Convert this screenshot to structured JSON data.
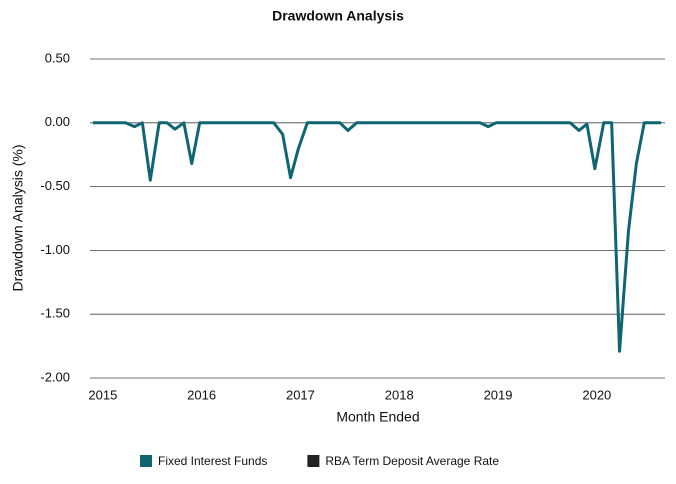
{
  "chart_data": {
    "type": "line",
    "title": "Drawdown Analysis",
    "x_label": "Month Ended",
    "y_label": "Drawdown Analysis (%)",
    "x": [
      2014.9,
      2014.98,
      2015.07,
      2015.15,
      2015.23,
      2015.32,
      2015.4,
      2015.48,
      2015.57,
      2015.65,
      2015.73,
      2015.82,
      2015.9,
      2015.98,
      2016.07,
      2016.15,
      2016.23,
      2016.32,
      2016.4,
      2016.48,
      2016.57,
      2016.65,
      2016.73,
      2016.82,
      2016.9,
      2016.98,
      2017.07,
      2017.15,
      2017.23,
      2017.32,
      2017.4,
      2017.48,
      2017.57,
      2017.65,
      2017.73,
      2017.82,
      2017.9,
      2017.98,
      2018.07,
      2018.15,
      2018.23,
      2018.32,
      2018.4,
      2018.48,
      2018.57,
      2018.65,
      2018.73,
      2018.82,
      2018.9,
      2018.98,
      2019.07,
      2019.15,
      2019.23,
      2019.32,
      2019.4,
      2019.48,
      2019.57,
      2019.65,
      2019.73,
      2019.82,
      2019.9,
      2019.98,
      2020.07,
      2020.15,
      2020.23,
      2020.32,
      2020.4,
      2020.48,
      2020.57,
      2020.65
    ],
    "series": [
      {
        "name": "Fixed Interest Funds",
        "color": "#0f6673",
        "values": [
          0,
          0,
          0,
          0,
          0,
          -0.03,
          0,
          -0.45,
          0,
          0,
          -0.05,
          0,
          -0.32,
          0,
          0,
          0,
          0,
          0,
          0,
          0,
          0,
          0,
          0,
          -0.09,
          -0.43,
          -0.2,
          0,
          0,
          0,
          0,
          0,
          -0.06,
          0,
          0,
          0,
          0,
          0,
          0,
          0,
          0,
          0,
          0,
          0,
          0,
          0,
          0,
          0,
          0,
          -0.03,
          0,
          0,
          0,
          0,
          0,
          0,
          0,
          0,
          0,
          0,
          -0.06,
          -0.01,
          -0.36,
          0,
          0,
          -1.79,
          -0.85,
          -0.32,
          0,
          0,
          0
        ]
      },
      {
        "name": "RBA Term Deposit Average Rate",
        "color": "#222222",
        "values": [
          null,
          null,
          null,
          null,
          null,
          null,
          null,
          null,
          null,
          null,
          null,
          null,
          null,
          null,
          null,
          null,
          null,
          null,
          null,
          null,
          null,
          null,
          null,
          null,
          null,
          null,
          null,
          null,
          null,
          null,
          null,
          null,
          null,
          null,
          null,
          null,
          null,
          null,
          null,
          null,
          null,
          null,
          null,
          null,
          null,
          null,
          null,
          null,
          null,
          null,
          null,
          null,
          null,
          null,
          null,
          null,
          null,
          null,
          null,
          null,
          null,
          null,
          null,
          null,
          null,
          null,
          null,
          null,
          null,
          null
        ]
      }
    ],
    "xlim": [
      2014.87,
      2020.69
    ],
    "xticks": [
      2015,
      2016,
      2017,
      2018,
      2019,
      2020
    ],
    "ylim": [
      -2,
      0.5
    ],
    "yticks": [
      {
        "value": 0.5,
        "label": "0.50"
      },
      {
        "value": 0,
        "label": "0.00"
      },
      {
        "value": -0.5,
        "label": "-0.50"
      },
      {
        "value": -1,
        "label": "-1.00"
      },
      {
        "value": -1.5,
        "label": "-1.50"
      },
      {
        "value": -2,
        "label": "-2.00"
      }
    ],
    "grid": true,
    "legend": "bottom"
  }
}
